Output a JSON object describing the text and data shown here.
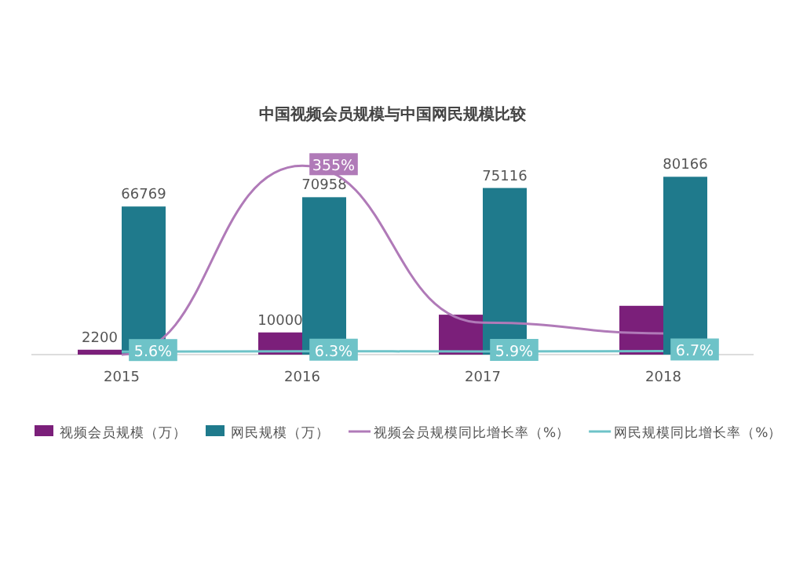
{
  "chart_data": {
    "type": "bar",
    "title": "中国视频会员规模与中国网民规模比较",
    "categories": [
      "2015",
      "2016",
      "2017",
      "2018"
    ],
    "series": [
      {
        "name": "视频会员规模（万）",
        "color": "#7b1f7a",
        "values": [
          2200,
          10000,
          18000,
          22000
        ],
        "value_labels": [
          "2200",
          "10000",
          null,
          null
        ]
      },
      {
        "name": "网民规模（万）",
        "color": "#1f7a8c",
        "values": [
          66769,
          70958,
          75116,
          80166
        ],
        "value_labels": [
          "66769",
          "70958",
          "75116",
          "80166"
        ]
      },
      {
        "name": "视频会员规模同比增长率（%）",
        "type": "line",
        "axis": "y2",
        "color": "#b07ab8",
        "values": [
          0,
          355,
          60,
          40
        ],
        "value_labels": [
          null,
          "355%",
          null,
          null
        ]
      },
      {
        "name": "网民规模同比增长率（%）",
        "type": "line",
        "axis": "y2",
        "color": "#6ec3c8",
        "values": [
          5.6,
          6.3,
          5.9,
          6.7
        ],
        "value_labels": [
          "5.6%",
          "6.3%",
          "5.9%",
          "6.7%"
        ]
      }
    ],
    "tick_labels": "x",
    "legend": "bottom"
  }
}
